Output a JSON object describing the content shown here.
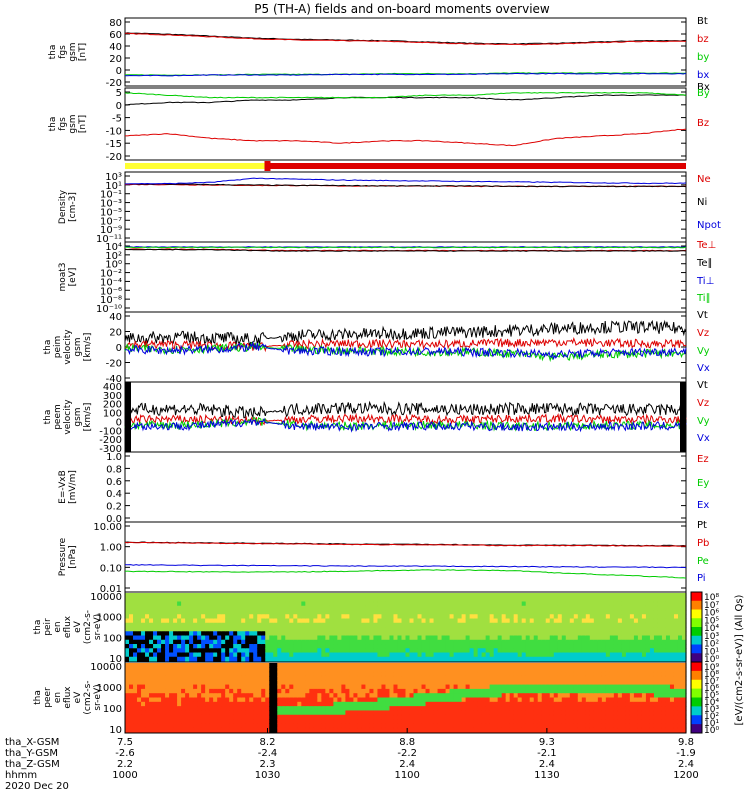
{
  "title": "P5 (TH-A) fields and on-board moments overview",
  "colors": {
    "black": "#000000",
    "red": "#dd0000",
    "green": "#00cc00",
    "blue": "#0000dd",
    "yellow": "#ffff33"
  },
  "chart_data": [
    {
      "type": "line",
      "ylabel": [
        "tha",
        "fgs",
        "gsm",
        "[nT]"
      ],
      "yticks": [
        "80",
        "60",
        "40",
        "20",
        "0",
        "-20"
      ],
      "ylim": [
        -20,
        85
      ],
      "series": [
        {
          "name": "Bt",
          "color": "#000000",
          "values": [
            62,
            60,
            57,
            54,
            52,
            51,
            50,
            48,
            46,
            45,
            46,
            48,
            50,
            50
          ]
        },
        {
          "name": "bz",
          "color": "#dd0000",
          "values": [
            61,
            59,
            56,
            53,
            51,
            50,
            49,
            47,
            45,
            44,
            45,
            47,
            49,
            49
          ]
        },
        {
          "name": "by",
          "color": "#00cc00",
          "values": [
            -3,
            -3,
            -3,
            -2,
            -2,
            -2,
            -1,
            -1,
            -1,
            0,
            0,
            0,
            0,
            0
          ]
        },
        {
          "name": "bx",
          "color": "#0000dd",
          "values": [
            -4,
            -4,
            -3,
            -3,
            -3,
            -2,
            -2,
            -2,
            -2,
            -1,
            -1,
            -1,
            -1,
            -1
          ]
        }
      ]
    },
    {
      "type": "line",
      "ylabel": [
        "tha",
        "fgs",
        "gsm",
        "[nT]"
      ],
      "yticks": [
        "5",
        "0",
        "-5",
        "-10",
        "-15",
        "-20"
      ],
      "ylim": [
        -23,
        7
      ],
      "series": [
        {
          "name": "Bx",
          "color": "#000000",
          "values": [
            0,
            1,
            1,
            2,
            2,
            3,
            3,
            3,
            3,
            2,
            3,
            4,
            4,
            4
          ]
        },
        {
          "name": "By",
          "color": "#00cc00",
          "values": [
            5,
            4,
            3,
            3,
            3,
            3,
            3,
            4,
            4,
            5,
            5,
            5,
            5,
            4
          ]
        },
        {
          "name": "Bz",
          "color": "#dd0000",
          "values": [
            -13,
            -12,
            -14,
            -15,
            -15,
            -16,
            -15,
            -15,
            -16,
            -17,
            -14,
            -13,
            -12,
            -10
          ]
        }
      ]
    },
    {
      "type": "bar",
      "series": [
        {
          "name": "mode-slow",
          "color": "#ffff33",
          "range": [
            0,
            0.254
          ]
        },
        {
          "name": "mode-fast",
          "color": "#dd0000",
          "range": [
            0.254,
            1
          ]
        }
      ]
    },
    {
      "type": "line",
      "ylabel": [
        "Density",
        "[cm-3]"
      ],
      "yticks": [
        "10³",
        "10¹",
        "10⁻¹",
        "10⁻³",
        "10⁻⁵",
        "10⁻⁷",
        "10⁻⁹",
        "10⁻¹¹"
      ],
      "ylim": [
        -12,
        3.6
      ],
      "series": [
        {
          "name": "Ne",
          "color": "#dd0000",
          "values": [
            0.8,
            0.8,
            0.7,
            0.6,
            0.6,
            0.5,
            0.5,
            0.5,
            0.4,
            0.4,
            0.4,
            0.4,
            0.4,
            0.4
          ]
        },
        {
          "name": "Ni",
          "color": "#000000",
          "values": [
            0.9,
            0.9,
            0.8,
            0.7,
            0.6,
            0.6,
            0.5,
            0.5,
            0.5,
            0.4,
            0.4,
            0.4,
            0.4,
            0.4
          ]
        },
        {
          "name": "Npot",
          "color": "#0000dd",
          "values": [
            1.0,
            1.0,
            1.3,
            2.2,
            2.0,
            1.8,
            1.7,
            1.6,
            1.5,
            1.4,
            1.3,
            1.2,
            1.1,
            1.1
          ]
        }
      ]
    },
    {
      "type": "line",
      "ylabel": [
        "moat3",
        "[eV]"
      ],
      "yticks": [
        "10⁴",
        "10²",
        "10⁰",
        "10⁻²",
        "10⁻⁴",
        "10⁻⁶",
        "10⁻⁸",
        "10⁻¹⁰"
      ],
      "ylim": [
        -11,
        4.5
      ],
      "series": [
        {
          "name": "Te⊥",
          "color": "#dd0000",
          "values": [
            2.9,
            2.9,
            2.9,
            2.7,
            2.6,
            2.6,
            2.6,
            2.6,
            2.6,
            2.6,
            2.6,
            2.6,
            2.6,
            2.6
          ]
        },
        {
          "name": "Te∥",
          "color": "#000000",
          "values": [
            2.8,
            2.8,
            2.8,
            2.6,
            2.5,
            2.5,
            2.5,
            2.5,
            2.5,
            2.5,
            2.5,
            2.5,
            2.5,
            2.5
          ]
        },
        {
          "name": "Ti⊥",
          "color": "#0000dd",
          "values": [
            3.4,
            3.4,
            3.4,
            3.4,
            3.4,
            3.4,
            3.4,
            3.4,
            3.4,
            3.4,
            3.4,
            3.4,
            3.4,
            3.4
          ]
        },
        {
          "name": "Ti∥",
          "color": "#00cc00",
          "values": [
            3.3,
            3.3,
            3.3,
            3.3,
            3.3,
            3.3,
            3.3,
            3.3,
            3.3,
            3.3,
            3.3,
            3.3,
            3.3,
            3.3
          ]
        }
      ]
    },
    {
      "type": "line",
      "ylabel": [
        "tha",
        "peim",
        "velocity",
        "gsm",
        "[km/s]"
      ],
      "yticks": [
        "40",
        "20",
        "0",
        "-20",
        "-40"
      ],
      "ylim": [
        -42,
        42
      ],
      "series": [
        {
          "name": "Vt",
          "color": "#000000",
          "values": [
            10,
            12,
            11,
            9,
            14,
            15,
            16,
            17,
            18,
            20,
            22,
            24,
            24,
            22
          ]
        },
        {
          "name": "Vz",
          "color": "#dd0000",
          "values": [
            3,
            3,
            2,
            0,
            3,
            4,
            4,
            3,
            4,
            5,
            6,
            5,
            4,
            4
          ]
        },
        {
          "name": "Vy",
          "color": "#00cc00",
          "values": [
            -2,
            -3,
            -2,
            0,
            -3,
            -4,
            -5,
            -6,
            -6,
            -8,
            -12,
            -9,
            -8,
            -7
          ]
        },
        {
          "name": "Vx",
          "color": "#0000dd",
          "values": [
            -3,
            -4,
            -3,
            0,
            -5,
            -5,
            -6,
            -5,
            -6,
            -7,
            -9,
            -7,
            -6,
            -5
          ]
        }
      ]
    },
    {
      "type": "line",
      "ylabel": [
        "tha",
        "peem",
        "velocity",
        "gsm",
        "[km/s]"
      ],
      "yticks": [
        "400",
        "300",
        "200",
        "100",
        "0",
        "-100",
        "-200",
        "-300"
      ],
      "ylim": [
        -320,
        410
      ],
      "series": [
        {
          "name": "Vt",
          "color": "#000000",
          "values": [
            120,
            130,
            120,
            80,
            130,
            140,
            130,
            130,
            120,
            130,
            130,
            120,
            120,
            120
          ]
        },
        {
          "name": "Vz",
          "color": "#dd0000",
          "values": [
            20,
            20,
            20,
            0,
            20,
            30,
            30,
            20,
            20,
            30,
            30,
            20,
            20,
            20
          ]
        },
        {
          "name": "Vy",
          "color": "#00cc00",
          "values": [
            -40,
            -40,
            -30,
            0,
            -40,
            -50,
            -40,
            -40,
            -40,
            -50,
            -50,
            -40,
            -40,
            -40
          ]
        },
        {
          "name": "Vx",
          "color": "#0000dd",
          "values": [
            -50,
            -50,
            -40,
            0,
            -50,
            -60,
            -50,
            -50,
            -50,
            -60,
            -60,
            -50,
            -50,
            -50
          ]
        }
      ]
    },
    {
      "type": "line",
      "ylabel": [
        "E=-VxB",
        "[mV/m]"
      ],
      "yticks": [
        "1.0",
        "0.8",
        "0.6",
        "0.4",
        "0.2",
        "0.0"
      ],
      "ylim": [
        0,
        1
      ],
      "series": [
        {
          "name": "Ez",
          "color": "#dd0000",
          "values": []
        },
        {
          "name": "Ey",
          "color": "#00cc00",
          "values": []
        },
        {
          "name": "Ex",
          "color": "#0000dd",
          "values": []
        }
      ]
    },
    {
      "type": "line",
      "ylabel": [
        "Pressure",
        "[nPa]"
      ],
      "yticks": [
        "10.00",
        "1.00",
        "0.10",
        "0.01"
      ],
      "ylim": [
        -2.1,
        1.1
      ],
      "log": true,
      "series": [
        {
          "name": "Pt",
          "color": "#000000",
          "values": [
            1.5,
            1.45,
            1.4,
            1.35,
            1.3,
            1.25,
            1.2,
            1.2,
            1.15,
            1.1,
            1.1,
            1.1,
            1.05,
            1.05
          ]
        },
        {
          "name": "Pb",
          "color": "#dd0000",
          "values": [
            1.45,
            1.4,
            1.35,
            1.3,
            1.25,
            1.2,
            1.15,
            1.15,
            1.1,
            1.05,
            1.05,
            1.05,
            1.0,
            1.0
          ]
        },
        {
          "name": "Pe",
          "color": "#00cc00",
          "values": [
            0.07,
            0.068,
            0.066,
            0.065,
            0.066,
            0.07,
            0.075,
            0.08,
            0.08,
            0.075,
            0.06,
            0.05,
            0.042,
            0.035
          ]
        },
        {
          "name": "Pi",
          "color": "#0000dd",
          "values": [
            0.14,
            0.135,
            0.13,
            0.128,
            0.125,
            0.123,
            0.12,
            0.12,
            0.118,
            0.115,
            0.113,
            0.11,
            0.108,
            0.105
          ]
        }
      ]
    },
    {
      "type": "heatmap",
      "ylabel": [
        "tha",
        "peir",
        "en",
        "eflux",
        "eV",
        "(cm2-s-",
        "sr-eV)"
      ],
      "yticks": [
        "10000",
        "1000",
        "100",
        "10"
      ]
    },
    {
      "type": "heatmap",
      "ylabel": [
        "tha",
        "peer",
        "en",
        "eflux",
        "eV",
        "(cm2-s-",
        "sr-eV)"
      ],
      "yticks": [
        "10000",
        "1000",
        "100",
        "10"
      ]
    }
  ],
  "colorbars": [
    {
      "labels": [
        "10⁸",
        "10⁷",
        "10⁶",
        "10⁵",
        "10⁴",
        "10³",
        "10²",
        "10¹",
        "10⁰"
      ]
    },
    {
      "labels": [
        "10⁹",
        "10⁸",
        "10⁷",
        "10⁶",
        "10⁵",
        "10⁴",
        "10³",
        "10²",
        "10¹",
        "10⁰"
      ]
    }
  ],
  "colorbar_label": "[eV/(cm2-s-sr-eV)] (All Qs)",
  "xaxis": {
    "rows": [
      {
        "label": "tha_X-GSM",
        "values": [
          "7.5",
          "8.2",
          "8.8",
          "9.3",
          "9.8"
        ]
      },
      {
        "label": "tha_Y-GSM",
        "values": [
          "-2.6",
          "-2.4",
          "-2.2",
          "-2.1",
          "-1.9"
        ]
      },
      {
        "label": "tha_Z-GSM",
        "values": [
          "2.2",
          "2.3",
          "2.4",
          "2.4",
          "2.4"
        ]
      },
      {
        "label": "hhmm",
        "values": [
          "1000",
          "1030",
          "1100",
          "1130",
          "1200"
        ]
      }
    ],
    "date": "2020 Dec 20"
  }
}
